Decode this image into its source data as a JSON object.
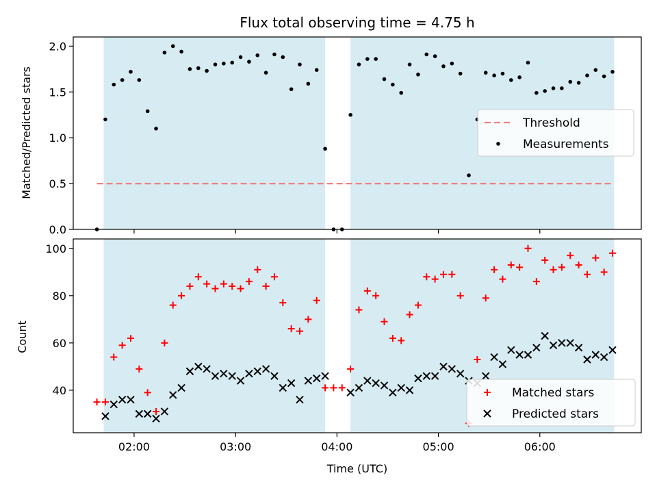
{
  "chart_data": [
    {
      "type": "scatter",
      "title": "Flux total observing time = 4.75 h",
      "xlabel": "",
      "ylabel": "Matched/Predicted stars",
      "xlim": [
        "01:24",
        "07:00"
      ],
      "ylim": [
        0,
        2.1
      ],
      "yticks": [
        0.0,
        0.5,
        1.0,
        1.5,
        2.0
      ],
      "ytick_labels": [
        "0.0",
        "0.5",
        "1.0",
        "1.5",
        "2.0"
      ],
      "grid": false,
      "legend": {
        "placement": "center-right",
        "entries": [
          {
            "label": "Threshold",
            "color": "#f08080",
            "marker": "dashed-line"
          },
          {
            "label": "Measurements",
            "color": "#000000",
            "marker": "dot"
          }
        ]
      },
      "shaded_intervals": [
        {
          "start": "01:42",
          "end": "03:53",
          "color": "#add8e6"
        },
        {
          "start": "04:08",
          "end": "06:44",
          "color": "#add8e6"
        }
      ],
      "threshold": {
        "value": 0.5,
        "start": "01:38",
        "end": "06:44"
      },
      "series": [
        {
          "name": "Measurements",
          "x": [
            "01:38",
            "01:43",
            "01:48",
            "01:53",
            "01:58",
            "02:03",
            "02:08",
            "02:13",
            "02:18",
            "02:23",
            "02:28",
            "02:33",
            "02:38",
            "02:43",
            "02:48",
            "02:53",
            "02:58",
            "03:03",
            "03:08",
            "03:13",
            "03:18",
            "03:23",
            "03:28",
            "03:33",
            "03:38",
            "03:43",
            "03:48",
            "03:53",
            "03:58",
            "04:03",
            "04:08",
            "04:13",
            "04:18",
            "04:23",
            "04:28",
            "04:33",
            "04:38",
            "04:43",
            "04:48",
            "04:53",
            "04:58",
            "05:03",
            "05:08",
            "05:13",
            "05:18",
            "05:23",
            "05:28",
            "05:33",
            "05:38",
            "05:43",
            "05:48",
            "05:53",
            "05:58",
            "06:03",
            "06:08",
            "06:13",
            "06:18",
            "06:23",
            "06:28",
            "06:33",
            "06:38",
            "06:43"
          ],
          "y": [
            0.0,
            1.2,
            1.58,
            1.63,
            1.72,
            1.63,
            1.29,
            1.1,
            1.93,
            2.0,
            1.94,
            1.75,
            1.76,
            1.73,
            1.8,
            1.81,
            1.82,
            1.88,
            1.83,
            1.9,
            1.71,
            1.91,
            1.88,
            1.53,
            1.8,
            1.59,
            1.74,
            0.88,
            0.0,
            0.0,
            1.25,
            1.8,
            1.86,
            1.86,
            1.64,
            1.58,
            1.49,
            1.8,
            1.69,
            1.91,
            1.89,
            1.78,
            1.81,
            1.7,
            0.59,
            1.2,
            1.71,
            1.68,
            1.7,
            1.63,
            1.66,
            1.82,
            1.49,
            1.51,
            1.54,
            1.54,
            1.61,
            1.6,
            1.68,
            1.74,
            1.67,
            1.72
          ]
        }
      ]
    },
    {
      "type": "scatter",
      "title": "",
      "xlabel": "Time (UTC)",
      "ylabel": "Count",
      "xlim": [
        "01:24",
        "07:00"
      ],
      "ylim": [
        22,
        104
      ],
      "yticks": [
        40,
        60,
        80,
        100
      ],
      "ytick_labels": [
        "40",
        "60",
        "80",
        "100"
      ],
      "xticks": [
        "02:00",
        "03:00",
        "04:00",
        "05:00",
        "06:00"
      ],
      "xtick_labels": [
        "02:00",
        "03:00",
        "04:00",
        "05:00",
        "06:00"
      ],
      "grid": false,
      "legend": {
        "placement": "bottom-right",
        "entries": [
          {
            "label": "Matched stars",
            "color": "#ff0000",
            "marker": "plus"
          },
          {
            "label": "Predicted stars",
            "color": "#000000",
            "marker": "x"
          }
        ]
      },
      "shaded_intervals": [
        {
          "start": "01:42",
          "end": "03:53",
          "color": "#add8e6"
        },
        {
          "start": "04:08",
          "end": "06:44",
          "color": "#add8e6"
        }
      ],
      "series": [
        {
          "name": "Matched stars",
          "color": "#ff0000",
          "x": [
            "01:38",
            "01:43",
            "01:48",
            "01:53",
            "01:58",
            "02:03",
            "02:08",
            "02:13",
            "02:18",
            "02:23",
            "02:28",
            "02:33",
            "02:38",
            "02:43",
            "02:48",
            "02:53",
            "02:58",
            "03:03",
            "03:08",
            "03:13",
            "03:18",
            "03:23",
            "03:28",
            "03:33",
            "03:38",
            "03:43",
            "03:48",
            "03:53",
            "03:58",
            "04:03",
            "04:08",
            "04:13",
            "04:18",
            "04:23",
            "04:28",
            "04:33",
            "04:38",
            "04:43",
            "04:48",
            "04:53",
            "04:58",
            "05:03",
            "05:08",
            "05:13",
            "05:18",
            "05:23",
            "05:28",
            "05:33",
            "05:38",
            "05:43",
            "05:48",
            "05:53",
            "05:58",
            "06:03",
            "06:08",
            "06:13",
            "06:18",
            "06:23",
            "06:28",
            "06:33",
            "06:38",
            "06:43"
          ],
          "y": [
            35,
            35,
            54,
            59,
            62,
            49,
            39,
            31,
            60,
            76,
            80,
            84,
            88,
            85,
            83,
            85,
            84,
            83,
            86,
            91,
            84,
            88,
            77,
            66,
            65,
            70,
            78,
            41,
            41,
            41,
            49,
            74,
            82,
            80,
            69,
            62,
            61,
            72,
            76,
            88,
            87,
            89,
            89,
            80,
            26,
            53,
            79,
            91,
            87,
            93,
            92,
            100,
            86,
            95,
            91,
            92,
            97,
            93,
            89,
            96,
            90,
            98
          ]
        },
        {
          "name": "Predicted stars",
          "color": "#000000",
          "x": [
            "01:43",
            "01:48",
            "01:53",
            "01:58",
            "02:03",
            "02:08",
            "02:13",
            "02:18",
            "02:23",
            "02:28",
            "02:33",
            "02:38",
            "02:43",
            "02:48",
            "02:53",
            "02:58",
            "03:03",
            "03:08",
            "03:13",
            "03:18",
            "03:23",
            "03:28",
            "03:33",
            "03:38",
            "03:43",
            "03:48",
            "03:53",
            "04:08",
            "04:13",
            "04:18",
            "04:23",
            "04:28",
            "04:33",
            "04:38",
            "04:43",
            "04:48",
            "04:53",
            "04:58",
            "05:03",
            "05:08",
            "05:13",
            "05:18",
            "05:23",
            "05:28",
            "05:33",
            "05:38",
            "05:43",
            "05:48",
            "05:53",
            "05:58",
            "06:03",
            "06:08",
            "06:13",
            "06:18",
            "06:23",
            "06:28",
            "06:33",
            "06:38",
            "06:43"
          ],
          "y": [
            29,
            34,
            36,
            36,
            30,
            30,
            28,
            31,
            38,
            41,
            48,
            50,
            49,
            46,
            47,
            46,
            44,
            47,
            48,
            49,
            46,
            41,
            43,
            36,
            44,
            45,
            46,
            39,
            41,
            44,
            43,
            42,
            39,
            41,
            40,
            45,
            46,
            46,
            50,
            49,
            47,
            44,
            43,
            46,
            54,
            51,
            57,
            55,
            55,
            58,
            63,
            59,
            60,
            60,
            58,
            53,
            55,
            54,
            57
          ]
        }
      ]
    }
  ]
}
